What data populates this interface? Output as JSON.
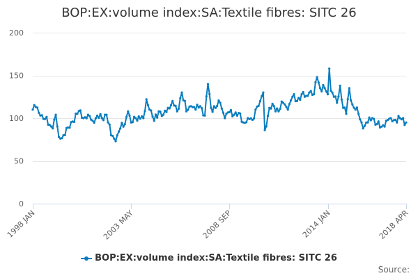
{
  "chart_data": {
    "type": "line",
    "title": "BOP:EX:volume index:SA:Textile fibres: SITC 26",
    "xlabel": "",
    "ylabel": "",
    "ylim": [
      0,
      200
    ],
    "yticks": [
      "0",
      "50",
      "100",
      "150",
      "200"
    ],
    "xticks": [
      "1998 JAN",
      "2003 MAY",
      "2008 SEP",
      "2014 JAN",
      "2018 APR"
    ],
    "legend": "bottom-center",
    "credits": "Source:",
    "color": "#0a7dbe",
    "anchors": [
      [
        "1998 JAN",
        110
      ],
      [
        "1998 MAR",
        113
      ],
      [
        "1998 JUN",
        103
      ],
      [
        "1998 SEP",
        99
      ],
      [
        "1998 DEC",
        92
      ],
      [
        "1999 FEB",
        88
      ],
      [
        "1999 APR",
        104
      ],
      [
        "1999 JUN",
        78
      ],
      [
        "1999 SEP",
        80
      ],
      [
        "1999 DEC",
        89
      ],
      [
        "2000 MAR",
        96
      ],
      [
        "2000 JUN",
        105
      ],
      [
        "2000 AUG",
        109
      ],
      [
        "2000 OCT",
        100
      ],
      [
        "2001 JAN",
        104
      ],
      [
        "2001 APR",
        97
      ],
      [
        "2001 JUL",
        103
      ],
      [
        "2001 OCT",
        100
      ],
      [
        "2002 JAN",
        104
      ],
      [
        "2002 APR",
        80
      ],
      [
        "2002 JUN",
        76
      ],
      [
        "2002 AUG",
        80
      ],
      [
        "2002 OCT",
        88
      ],
      [
        "2003 JAN",
        93
      ],
      [
        "2003 MAR",
        108
      ],
      [
        "2003 MAY",
        95
      ],
      [
        "2003 AUG",
        100
      ],
      [
        "2003 OCT",
        102
      ],
      [
        "2004 JAN",
        100
      ],
      [
        "2004 MAR",
        122
      ],
      [
        "2004 MAY",
        110
      ],
      [
        "2004 AUG",
        97
      ],
      [
        "2004 NOV",
        108
      ],
      [
        "2005 FEB",
        104
      ],
      [
        "2005 MAY",
        112
      ],
      [
        "2005 AUG",
        120
      ],
      [
        "2005 NOV",
        108
      ],
      [
        "2006 FEB",
        130
      ],
      [
        "2006 MAY",
        108
      ],
      [
        "2006 AUG",
        114
      ],
      [
        "2006 NOV",
        110
      ],
      [
        "2007 FEB",
        114
      ],
      [
        "2007 MAY",
        103
      ],
      [
        "2007 JUL",
        140
      ],
      [
        "2007 SEP",
        112
      ],
      [
        "2007 DEC",
        112
      ],
      [
        "2008 MAR",
        118
      ],
      [
        "2008 JUN",
        100
      ],
      [
        "2008 SEP",
        107
      ],
      [
        "2008 DEC",
        104
      ],
      [
        "2009 MAR",
        106
      ],
      [
        "2009 JUN",
        95
      ],
      [
        "2009 SEP",
        100
      ],
      [
        "2009 DEC",
        98
      ],
      [
        "2010 FEB",
        110
      ],
      [
        "2010 MAY",
        120
      ],
      [
        "2010 JUL",
        130
      ],
      [
        "2010 AUG",
        86
      ],
      [
        "2010 NOV",
        112
      ],
      [
        "2011 FEB",
        114
      ],
      [
        "2011 MAY",
        108
      ],
      [
        "2011 AUG",
        118
      ],
      [
        "2011 NOV",
        110
      ],
      [
        "2012 FEB",
        125
      ],
      [
        "2012 MAY",
        120
      ],
      [
        "2012 AUG",
        128
      ],
      [
        "2012 NOV",
        126
      ],
      [
        "2013 JAN",
        130
      ],
      [
        "2013 APR",
        128
      ],
      [
        "2013 JUN",
        148
      ],
      [
        "2013 AUG",
        135
      ],
      [
        "2013 NOV",
        135
      ],
      [
        "2014 JAN",
        128
      ],
      [
        "2014 FEB",
        158
      ],
      [
        "2014 MAR",
        132
      ],
      [
        "2014 MAY",
        125
      ],
      [
        "2014 JUL",
        118
      ],
      [
        "2014 SEP",
        138
      ],
      [
        "2014 NOV",
        112
      ],
      [
        "2015 JAN",
        105
      ],
      [
        "2015 MAR",
        135
      ],
      [
        "2015 MAY",
        116
      ],
      [
        "2015 JUL",
        110
      ],
      [
        "2015 SEP",
        105
      ],
      [
        "2015 DEC",
        88
      ],
      [
        "2016 MAR",
        95
      ],
      [
        "2016 JUN",
        100
      ],
      [
        "2016 SEP",
        93
      ],
      [
        "2016 DEC",
        90
      ],
      [
        "2017 MAR",
        97
      ],
      [
        "2017 JUN",
        100
      ],
      [
        "2017 SEP",
        98
      ],
      [
        "2017 DEC",
        100
      ],
      [
        "2018 FEB",
        100
      ],
      [
        "2018 MAR",
        92
      ],
      [
        "2018 APR",
        95
      ]
    ]
  }
}
